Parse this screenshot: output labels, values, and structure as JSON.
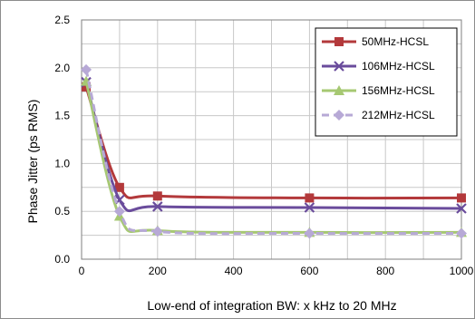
{
  "chart_data": {
    "type": "line",
    "title": "",
    "xlabel": "Low-end of integration BW: x kHz to 20 MHz",
    "ylabel": "Phase Jitter (ps RMS)",
    "xlim": [
      0,
      1000
    ],
    "ylim": [
      0,
      2.5
    ],
    "xticks": [
      "0",
      "200",
      "400",
      "600",
      "800",
      "1000"
    ],
    "yticks": [
      "0.0",
      "0.5",
      "1.0",
      "1.5",
      "2.0",
      "2.5"
    ],
    "grid": true,
    "legend_position": "top-right",
    "x": [
      12,
      100,
      200,
      600,
      1000
    ],
    "series": [
      {
        "name": "50MHz-HCSL",
        "values": [
          1.8,
          0.75,
          0.66,
          0.64,
          0.64
        ],
        "color": "#b3393b",
        "marker": "square",
        "dashed": false
      },
      {
        "name": "106MHz-HCSL",
        "values": [
          1.85,
          0.62,
          0.55,
          0.54,
          0.53
        ],
        "color": "#6a4c9c",
        "marker": "x",
        "dashed": false
      },
      {
        "name": "156MHz-HCSL",
        "values": [
          1.86,
          0.45,
          0.3,
          0.28,
          0.28
        ],
        "color": "#a6c872",
        "marker": "triangle",
        "dashed": false
      },
      {
        "name": "212MHz-HCSL",
        "values": [
          1.98,
          0.5,
          0.29,
          0.27,
          0.27
        ],
        "color": "#b7a9d6",
        "marker": "diamond",
        "dashed": true
      }
    ]
  }
}
